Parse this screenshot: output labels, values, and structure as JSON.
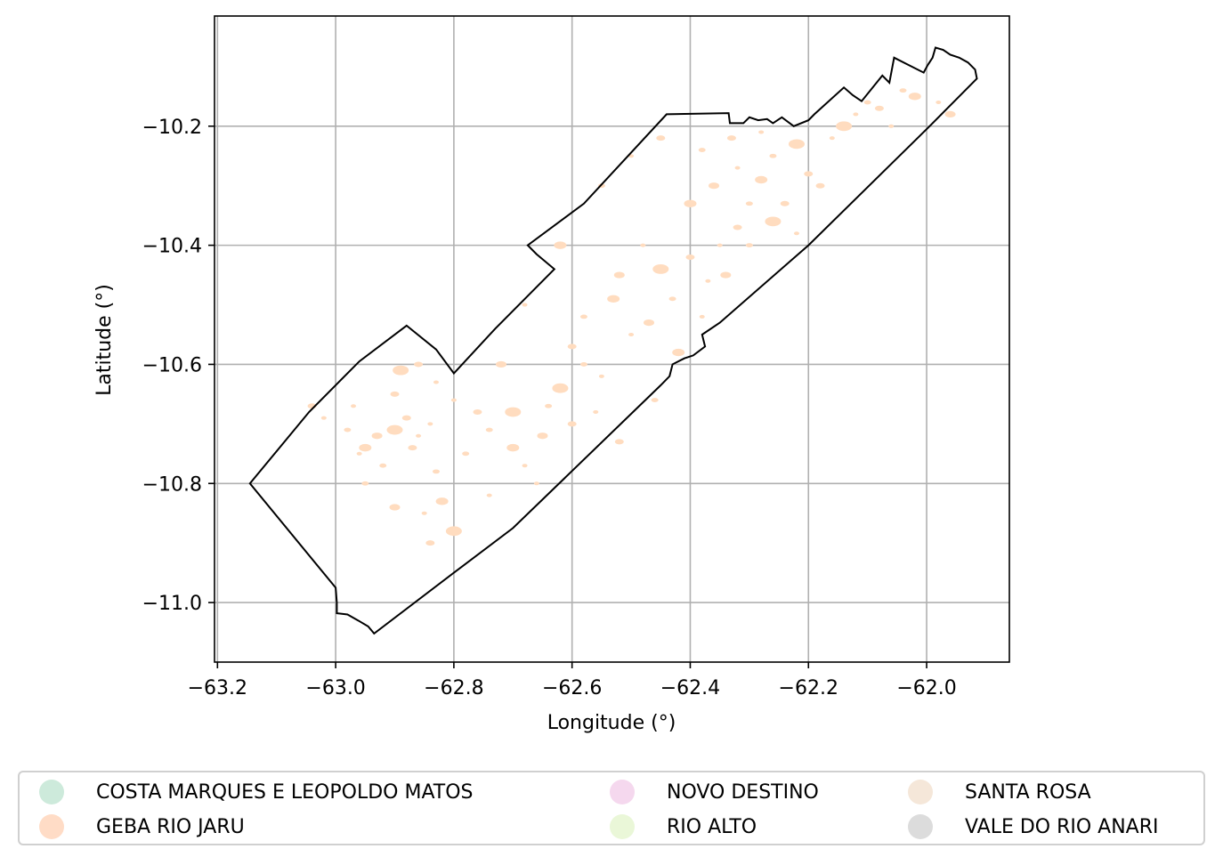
{
  "chart_data": {
    "type": "map",
    "xlabel": "Longitude (°)",
    "ylabel": "Latitude (°)",
    "xlim": [
      -63.205,
      -61.86
    ],
    "ylim": [
      -11.1,
      -10.015
    ],
    "grid": true,
    "x_ticks": [
      {
        "value": -63.2,
        "label": "−63.2"
      },
      {
        "value": -63.0,
        "label": "−63.0"
      },
      {
        "value": -62.8,
        "label": "−62.8"
      },
      {
        "value": -62.6,
        "label": "−62.6"
      },
      {
        "value": -62.4,
        "label": "−62.4"
      },
      {
        "value": -62.2,
        "label": "−62.2"
      },
      {
        "value": -62.0,
        "label": "−62.0"
      }
    ],
    "y_ticks": [
      {
        "value": -10.2,
        "label": "−10.2"
      },
      {
        "value": -10.4,
        "label": "−10.4"
      },
      {
        "value": -10.6,
        "label": "−10.6"
      },
      {
        "value": -10.8,
        "label": "−10.8"
      },
      {
        "value": -11.0,
        "label": "−11.0"
      }
    ],
    "boundary": [
      [
        -63.145,
        -10.8
      ],
      [
        -63.045,
        -10.68
      ],
      [
        -62.96,
        -10.595
      ],
      [
        -62.88,
        -10.535
      ],
      [
        -62.83,
        -10.575
      ],
      [
        -62.8,
        -10.615
      ],
      [
        -62.73,
        -10.54
      ],
      [
        -62.63,
        -10.44
      ],
      [
        -62.66,
        -10.415
      ],
      [
        -62.675,
        -10.4
      ],
      [
        -62.58,
        -10.33
      ],
      [
        -62.44,
        -10.18
      ],
      [
        -62.335,
        -10.178
      ],
      [
        -62.333,
        -10.195
      ],
      [
        -62.31,
        -10.195
      ],
      [
        -62.3,
        -10.185
      ],
      [
        -62.285,
        -10.19
      ],
      [
        -62.27,
        -10.188
      ],
      [
        -62.26,
        -10.195
      ],
      [
        -62.245,
        -10.185
      ],
      [
        -62.225,
        -10.2
      ],
      [
        -62.2,
        -10.19
      ],
      [
        -62.19,
        -10.18
      ],
      [
        -62.14,
        -10.135
      ],
      [
        -62.125,
        -10.148
      ],
      [
        -62.11,
        -10.158
      ],
      [
        -62.075,
        -10.115
      ],
      [
        -62.063,
        -10.127
      ],
      [
        -62.055,
        -10.085
      ],
      [
        -62.005,
        -10.11
      ],
      [
        -61.998,
        -10.097
      ],
      [
        -61.99,
        -10.085
      ],
      [
        -61.985,
        -10.068
      ],
      [
        -61.972,
        -10.072
      ],
      [
        -61.96,
        -10.08
      ],
      [
        -61.945,
        -10.085
      ],
      [
        -61.93,
        -10.093
      ],
      [
        -61.918,
        -10.105
      ],
      [
        -61.915,
        -10.12
      ],
      [
        -61.995,
        -10.2
      ],
      [
        -62.2,
        -10.4
      ],
      [
        -62.35,
        -10.53
      ],
      [
        -62.38,
        -10.55
      ],
      [
        -62.375,
        -10.57
      ],
      [
        -62.395,
        -10.585
      ],
      [
        -62.41,
        -10.59
      ],
      [
        -62.43,
        -10.6
      ],
      [
        -62.435,
        -10.62
      ],
      [
        -62.45,
        -10.635
      ],
      [
        -62.7,
        -10.875
      ],
      [
        -62.8,
        -10.95
      ],
      [
        -62.935,
        -11.052
      ],
      [
        -62.945,
        -11.04
      ],
      [
        -62.962,
        -11.03
      ],
      [
        -62.98,
        -11.02
      ],
      [
        -62.998,
        -11.018
      ],
      [
        -62.998,
        -11.0
      ],
      [
        -63.0,
        -10.975
      ],
      [
        -63.145,
        -10.8
      ]
    ],
    "patch_color": "#ffdcbf",
    "patches": [
      [
        -63.02,
        -10.69
      ],
      [
        -63.04,
        -10.67
      ],
      [
        -62.98,
        -10.71
      ],
      [
        -62.95,
        -10.74
      ],
      [
        -62.96,
        -10.75
      ],
      [
        -62.93,
        -10.72
      ],
      [
        -62.92,
        -10.77
      ],
      [
        -62.9,
        -10.71
      ],
      [
        -62.88,
        -10.69
      ],
      [
        -62.86,
        -10.72
      ],
      [
        -62.84,
        -10.7
      ],
      [
        -62.87,
        -10.74
      ],
      [
        -62.83,
        -10.78
      ],
      [
        -62.82,
        -10.83
      ],
      [
        -62.85,
        -10.85
      ],
      [
        -62.9,
        -10.84
      ],
      [
        -62.95,
        -10.8
      ],
      [
        -62.89,
        -10.61
      ],
      [
        -62.86,
        -10.6
      ],
      [
        -62.83,
        -10.63
      ],
      [
        -62.8,
        -10.66
      ],
      [
        -62.76,
        -10.68
      ],
      [
        -62.74,
        -10.71
      ],
      [
        -62.7,
        -10.74
      ],
      [
        -62.68,
        -10.77
      ],
      [
        -62.65,
        -10.72
      ],
      [
        -62.64,
        -10.67
      ],
      [
        -62.62,
        -10.64
      ],
      [
        -62.6,
        -10.7
      ],
      [
        -62.56,
        -10.68
      ],
      [
        -62.55,
        -10.62
      ],
      [
        -62.6,
        -10.57
      ],
      [
        -62.58,
        -10.52
      ],
      [
        -62.53,
        -10.49
      ],
      [
        -62.5,
        -10.55
      ],
      [
        -62.47,
        -10.53
      ],
      [
        -62.43,
        -10.49
      ],
      [
        -62.45,
        -10.44
      ],
      [
        -62.4,
        -10.42
      ],
      [
        -62.37,
        -10.46
      ],
      [
        -62.35,
        -10.4
      ],
      [
        -62.32,
        -10.37
      ],
      [
        -62.3,
        -10.33
      ],
      [
        -62.28,
        -10.29
      ],
      [
        -62.32,
        -10.27
      ],
      [
        -62.36,
        -10.3
      ],
      [
        -62.26,
        -10.25
      ],
      [
        -62.22,
        -10.23
      ],
      [
        -62.2,
        -10.28
      ],
      [
        -62.16,
        -10.22
      ],
      [
        -62.12,
        -10.18
      ],
      [
        -62.08,
        -10.17
      ],
      [
        -62.04,
        -10.14
      ],
      [
        -62.02,
        -10.15
      ],
      [
        -61.98,
        -10.16
      ],
      [
        -61.96,
        -10.18
      ],
      [
        -62.1,
        -10.16
      ],
      [
        -62.14,
        -10.2
      ],
      [
        -62.24,
        -10.33
      ],
      [
        -62.22,
        -10.38
      ],
      [
        -62.5,
        -10.25
      ],
      [
        -62.45,
        -10.22
      ],
      [
        -62.55,
        -10.3
      ],
      [
        -62.62,
        -10.4
      ],
      [
        -62.68,
        -10.5
      ],
      [
        -62.72,
        -10.6
      ],
      [
        -62.78,
        -10.75
      ],
      [
        -62.8,
        -10.88
      ],
      [
        -62.84,
        -10.9
      ],
      [
        -62.74,
        -10.82
      ],
      [
        -62.66,
        -10.8
      ],
      [
        -62.52,
        -10.73
      ],
      [
        -62.46,
        -10.66
      ],
      [
        -62.42,
        -10.58
      ],
      [
        -62.38,
        -10.52
      ],
      [
        -62.34,
        -10.45
      ],
      [
        -62.3,
        -10.4
      ],
      [
        -62.26,
        -10.36
      ],
      [
        -62.18,
        -10.3
      ],
      [
        -62.06,
        -10.2
      ],
      [
        -62.28,
        -10.21
      ],
      [
        -62.33,
        -10.22
      ],
      [
        -62.38,
        -10.24
      ],
      [
        -62.4,
        -10.33
      ],
      [
        -62.48,
        -10.4
      ],
      [
        -62.52,
        -10.45
      ],
      [
        -62.58,
        -10.6
      ],
      [
        -62.7,
        -10.68
      ],
      [
        -62.9,
        -10.65
      ],
      [
        -62.97,
        -10.67
      ]
    ]
  },
  "legend": {
    "items": [
      {
        "label": "COSTA MARQUES E LEOPOLDO MATOS",
        "color": "#cdeadb"
      },
      {
        "label": "GEBA RIO JARU",
        "color": "#ffdcc6"
      },
      {
        "label": "NOVO DESTINO",
        "color": "#f5d8ee"
      },
      {
        "label": "RIO ALTO",
        "color": "#eaf7d8"
      },
      {
        "label": "SANTA ROSA",
        "color": "#f5e7d9"
      },
      {
        "label": "VALE DO RIO ANARI",
        "color": "#dcdcdc"
      }
    ]
  }
}
